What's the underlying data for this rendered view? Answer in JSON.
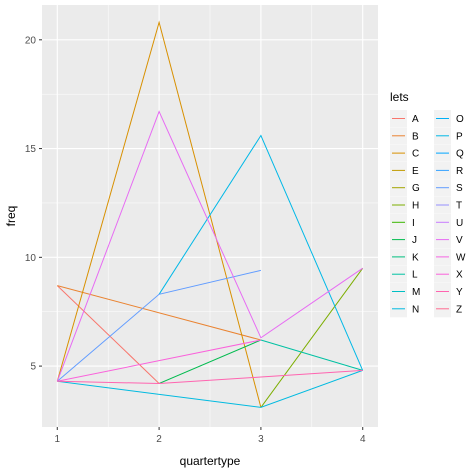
{
  "chart_data": {
    "type": "line",
    "xlabel": "quartertype",
    "ylabel": "freq",
    "x": [
      1,
      2,
      3,
      4
    ],
    "x_ticks": [
      "1",
      "2",
      "3",
      "4"
    ],
    "y_ticks": [
      "5",
      "10",
      "15",
      "20"
    ],
    "xlim": [
      0.85,
      4.15
    ],
    "ylim": [
      2.2,
      21.6
    ],
    "grid": true,
    "legend_title": "lets",
    "legend_position": "right",
    "series": [
      {
        "name": "A",
        "color": "#F8766D",
        "points": [
          [
            1,
            8.7
          ],
          [
            2,
            4.2
          ]
        ]
      },
      {
        "name": "B",
        "color": "#EA8331",
        "points": [
          [
            1,
            8.7
          ],
          [
            3,
            6.2
          ]
        ]
      },
      {
        "name": "C",
        "color": "#D89000",
        "points": [
          [
            1,
            4.3
          ],
          [
            2,
            20.8
          ],
          [
            3,
            3.1
          ]
        ]
      },
      {
        "name": "E",
        "color": "#C09B00",
        "points": []
      },
      {
        "name": "G",
        "color": "#A3A500",
        "points": []
      },
      {
        "name": "H",
        "color": "#7CAE00",
        "points": [
          [
            3,
            3.1
          ],
          [
            4,
            9.5
          ]
        ]
      },
      {
        "name": "I",
        "color": "#39B600",
        "points": []
      },
      {
        "name": "J",
        "color": "#00BB4E",
        "points": [
          [
            2,
            4.2
          ],
          [
            3,
            6.2
          ]
        ]
      },
      {
        "name": "K",
        "color": "#00BF7D",
        "points": []
      },
      {
        "name": "L",
        "color": "#00C1A3",
        "points": [
          [
            3,
            6.2
          ],
          [
            4,
            4.8
          ]
        ]
      },
      {
        "name": "M",
        "color": "#00BFC4",
        "points": []
      },
      {
        "name": "N",
        "color": "#00BAE0",
        "points": [
          [
            1,
            4.3
          ],
          [
            3,
            3.1
          ],
          [
            4,
            4.8
          ]
        ]
      },
      {
        "name": "O",
        "color": "#00B0F6",
        "points": []
      },
      {
        "name": "P",
        "color": "#00B8E7",
        "points": [
          [
            2,
            8.3
          ],
          [
            3,
            15.6
          ],
          [
            4,
            4.8
          ]
        ]
      },
      {
        "name": "Q",
        "color": "#00A5FF",
        "points": []
      },
      {
        "name": "R",
        "color": "#35A2FF",
        "points": []
      },
      {
        "name": "S",
        "color": "#619CFF",
        "points": [
          [
            1,
            4.3
          ],
          [
            2,
            8.3
          ],
          [
            3,
            9.4
          ]
        ]
      },
      {
        "name": "T",
        "color": "#9590FF",
        "points": []
      },
      {
        "name": "U",
        "color": "#C77CFF",
        "points": []
      },
      {
        "name": "V",
        "color": "#E76BF3",
        "points": [
          [
            1,
            4.3
          ],
          [
            2,
            16.7
          ],
          [
            3,
            6.3
          ],
          [
            4,
            9.5
          ]
        ]
      },
      {
        "name": "W",
        "color": "#F564E3",
        "points": []
      },
      {
        "name": "X",
        "color": "#FA62DB",
        "points": [
          [
            1,
            4.3
          ],
          [
            3,
            6.2
          ]
        ]
      },
      {
        "name": "Y",
        "color": "#FF64B0",
        "points": [
          [
            1,
            4.3
          ],
          [
            2,
            4.2
          ],
          [
            3,
            4.5
          ],
          [
            4,
            4.8
          ]
        ]
      },
      {
        "name": "Z",
        "color": "#FF6C91",
        "points": []
      }
    ]
  }
}
